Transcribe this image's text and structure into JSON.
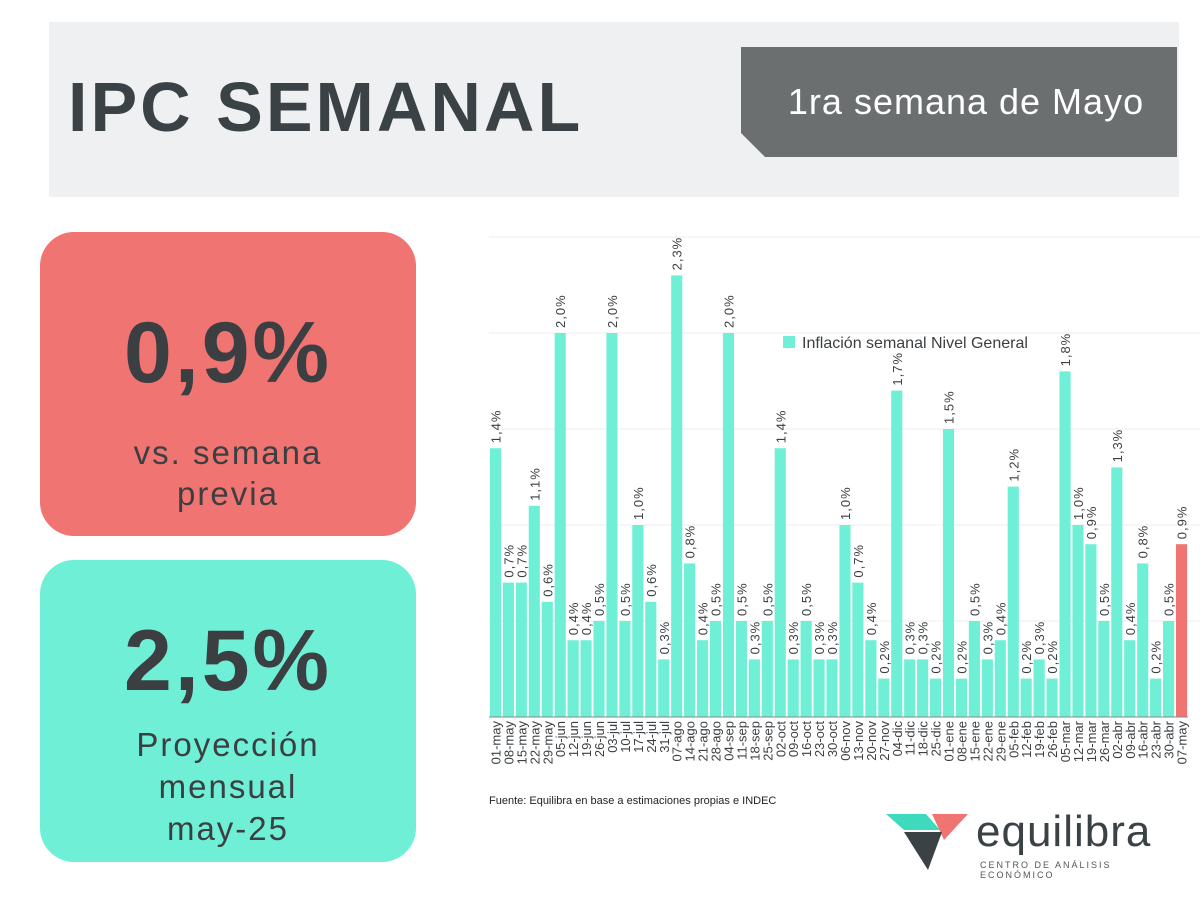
{
  "header": {
    "title": "IPC SEMANAL",
    "period_label": "1ra semana de Mayo"
  },
  "weekly_card": {
    "value": "0,9%",
    "caption_line1": "vs. semana",
    "caption_line2": "previa",
    "color": "#f07471"
  },
  "monthly_card": {
    "value": "2,5%",
    "caption_line1": "Proyección",
    "caption_line2": "mensual",
    "caption_line3": "may-25",
    "color": "#6ff0d6"
  },
  "chart_data": {
    "type": "bar",
    "title": "",
    "xlabel": "",
    "ylabel": "",
    "ylim": [
      0,
      2.5
    ],
    "grid": true,
    "legend_position": "top-right",
    "series": [
      {
        "name": "Inflación semanal Nivel General",
        "color": "#6ff0d6",
        "values": [
          1.4,
          0.7,
          0.7,
          1.1,
          0.6,
          2.0,
          0.4,
          0.4,
          0.5,
          2.0,
          0.5,
          1.0,
          0.6,
          0.3,
          2.3,
          0.8,
          0.4,
          0.5,
          2.0,
          0.5,
          0.3,
          0.5,
          1.4,
          0.3,
          0.5,
          0.3,
          0.3,
          1.0,
          0.7,
          0.4,
          0.2,
          1.7,
          0.3,
          0.3,
          0.2,
          1.5,
          0.2,
          0.5,
          0.3,
          0.4,
          1.2,
          0.2,
          0.3,
          0.2,
          1.8,
          1.0,
          0.9,
          0.5,
          1.3,
          0.4,
          0.8,
          0.2,
          0.5,
          0.9
        ],
        "labels": [
          "1,4%",
          "0,7%",
          "0,7%",
          "1,1%",
          "0,6%",
          "2,0%",
          "0,4%",
          "0,4%",
          "0,5%",
          "2,0%",
          "0,5%",
          "1,0%",
          "0,6%",
          "0,3%",
          "2,3%",
          "0,8%",
          "0,4%",
          "0,5%",
          "2,0%",
          "0,5%",
          "0,3%",
          "0,5%",
          "1,4%",
          "0,3%",
          "0,5%",
          "0,3%",
          "0,3%",
          "1,0%",
          "0,7%",
          "0,4%",
          "0,2%",
          "1,7%",
          "0,3%",
          "0,3%",
          "0,2%",
          "1,5%",
          "0,2%",
          "0,5%",
          "0,3%",
          "0,4%",
          "1,2%",
          "0,2%",
          "0,3%",
          "0,2%",
          "1,8%",
          "1,0%",
          "0,9%",
          "0,5%",
          "1,3%",
          "0,4%",
          "0,8%",
          "0,2%",
          "0,5%",
          "0,9%"
        ]
      }
    ],
    "categories": [
      "01-may",
      "08-may",
      "15-may",
      "22-may",
      "29-may",
      "05-jun",
      "12-jun",
      "19-jun",
      "26-jun",
      "03-jul",
      "10-jul",
      "17-jul",
      "24-jul",
      "31-jul",
      "07-ago",
      "14-ago",
      "21-ago",
      "28-ago",
      "04-sep",
      "11-sep",
      "18-sep",
      "25-sep",
      "02-oct",
      "09-oct",
      "16-oct",
      "23-oct",
      "30-oct",
      "06-nov",
      "13-nov",
      "20-nov",
      "27-nov",
      "04-dic",
      "11-dic",
      "18-dic",
      "25-dic",
      "01-ene",
      "08-ene",
      "15-ene",
      "22-ene",
      "29-ene",
      "05-feb",
      "12-feb",
      "19-feb",
      "26-feb",
      "05-mar",
      "12-mar",
      "19-mar",
      "26-mar",
      "02-abr",
      "09-abr",
      "16-abr",
      "23-abr",
      "30-abr",
      "07-may"
    ],
    "highlight_category": "07-may",
    "highlight_color": "#f07471",
    "source_note": "Fuente: Equilibra en base a estimaciones propias e INDEC"
  },
  "brand": {
    "name": "equilibra",
    "tagline": "CENTRO DE ANÁLISIS ECONÓMICO",
    "colors": {
      "teal": "#3fd9bd",
      "coral": "#f07471",
      "dark": "#3b4246"
    }
  }
}
